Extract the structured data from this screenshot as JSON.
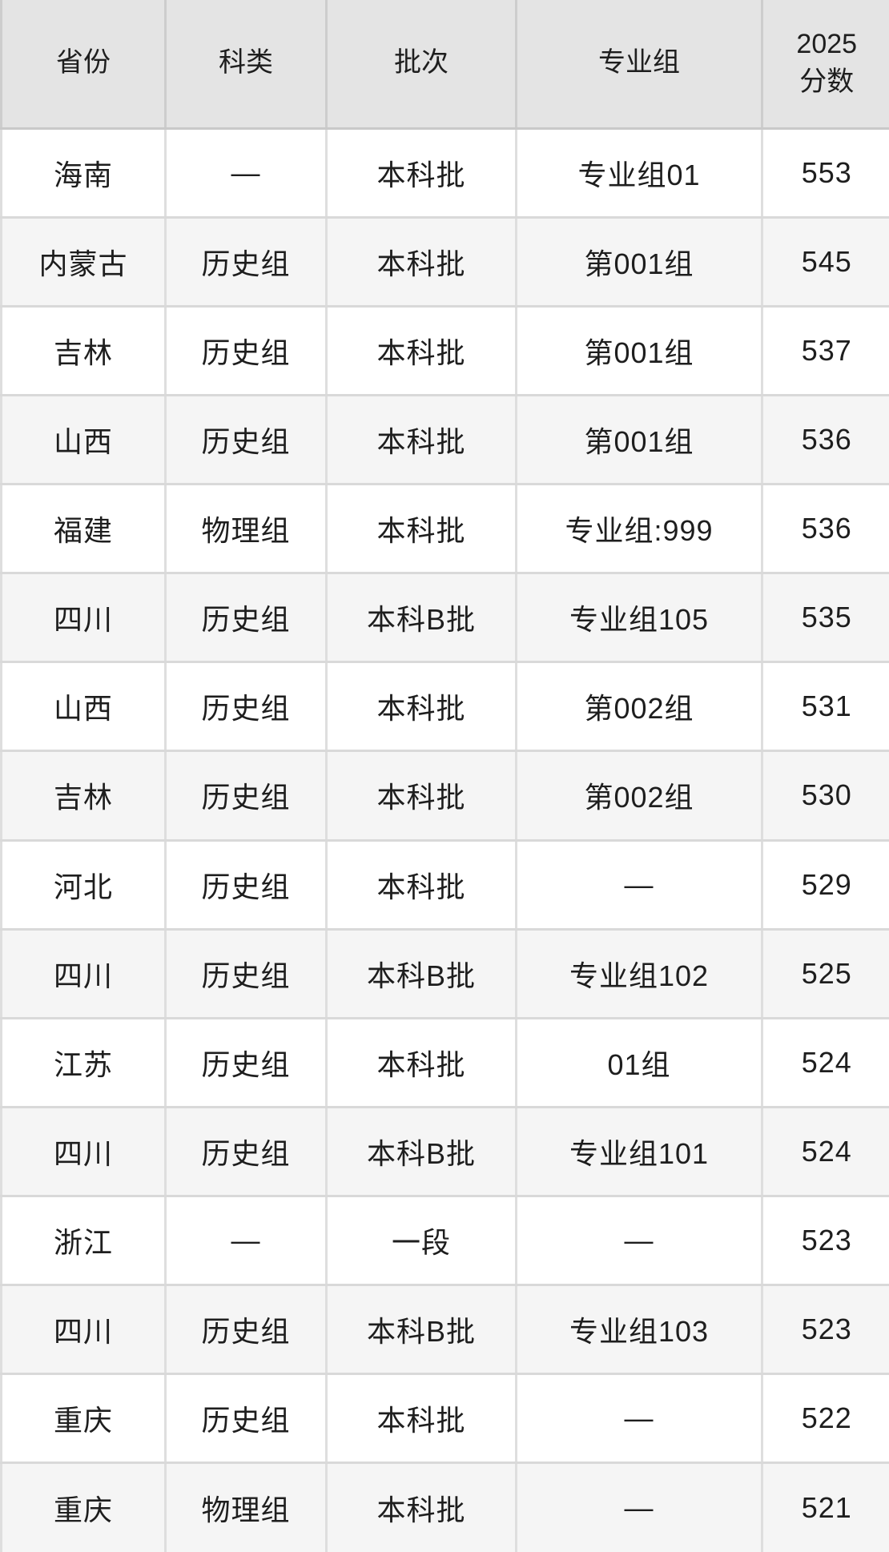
{
  "table": {
    "columns": [
      {
        "key": "province",
        "label": "省份"
      },
      {
        "key": "category",
        "label": "科类"
      },
      {
        "key": "batch",
        "label": "批次"
      },
      {
        "key": "group",
        "label": "专业组"
      },
      {
        "key": "score_2025",
        "label": "2025\n分数"
      }
    ],
    "rows": [
      {
        "province": "海南",
        "category": "—",
        "batch": "本科批",
        "group": "专业组01",
        "score_2025": "553"
      },
      {
        "province": "内蒙古",
        "category": "历史组",
        "batch": "本科批",
        "group": "第001组",
        "score_2025": "545"
      },
      {
        "province": "吉林",
        "category": "历史组",
        "batch": "本科批",
        "group": "第001组",
        "score_2025": "537"
      },
      {
        "province": "山西",
        "category": "历史组",
        "batch": "本科批",
        "group": "第001组",
        "score_2025": "536"
      },
      {
        "province": "福建",
        "category": "物理组",
        "batch": "本科批",
        "group": "专业组:999",
        "score_2025": "536"
      },
      {
        "province": "四川",
        "category": "历史组",
        "batch": "本科B批",
        "group": "专业组105",
        "score_2025": "535"
      },
      {
        "province": "山西",
        "category": "历史组",
        "batch": "本科批",
        "group": "第002组",
        "score_2025": "531"
      },
      {
        "province": "吉林",
        "category": "历史组",
        "batch": "本科批",
        "group": "第002组",
        "score_2025": "530"
      },
      {
        "province": "河北",
        "category": "历史组",
        "batch": "本科批",
        "group": "—",
        "score_2025": "529"
      },
      {
        "province": "四川",
        "category": "历史组",
        "batch": "本科B批",
        "group": "专业组102",
        "score_2025": "525"
      },
      {
        "province": "江苏",
        "category": "历史组",
        "batch": "本科批",
        "group": "01组",
        "score_2025": "524"
      },
      {
        "province": "四川",
        "category": "历史组",
        "batch": "本科B批",
        "group": "专业组101",
        "score_2025": "524"
      },
      {
        "province": "浙江",
        "category": "—",
        "batch": "一段",
        "group": "—",
        "score_2025": "523"
      },
      {
        "province": "四川",
        "category": "历史组",
        "batch": "本科B批",
        "group": "专业组103",
        "score_2025": "523"
      },
      {
        "province": "重庆",
        "category": "历史组",
        "batch": "本科批",
        "group": "—",
        "score_2025": "522"
      },
      {
        "province": "重庆",
        "category": "物理组",
        "batch": "本科批",
        "group": "—",
        "score_2025": "521"
      }
    ]
  },
  "colors": {
    "header_bg": "#e4e4e4",
    "row_alt_bg": "#f5f5f5",
    "border_vertical": "#dedede",
    "border_horizontal": "#d9d9d9",
    "header_border_vertical": "#cdcdcd",
    "header_border_horizontal": "#c9c9c9",
    "text": "#1e1e1e"
  }
}
